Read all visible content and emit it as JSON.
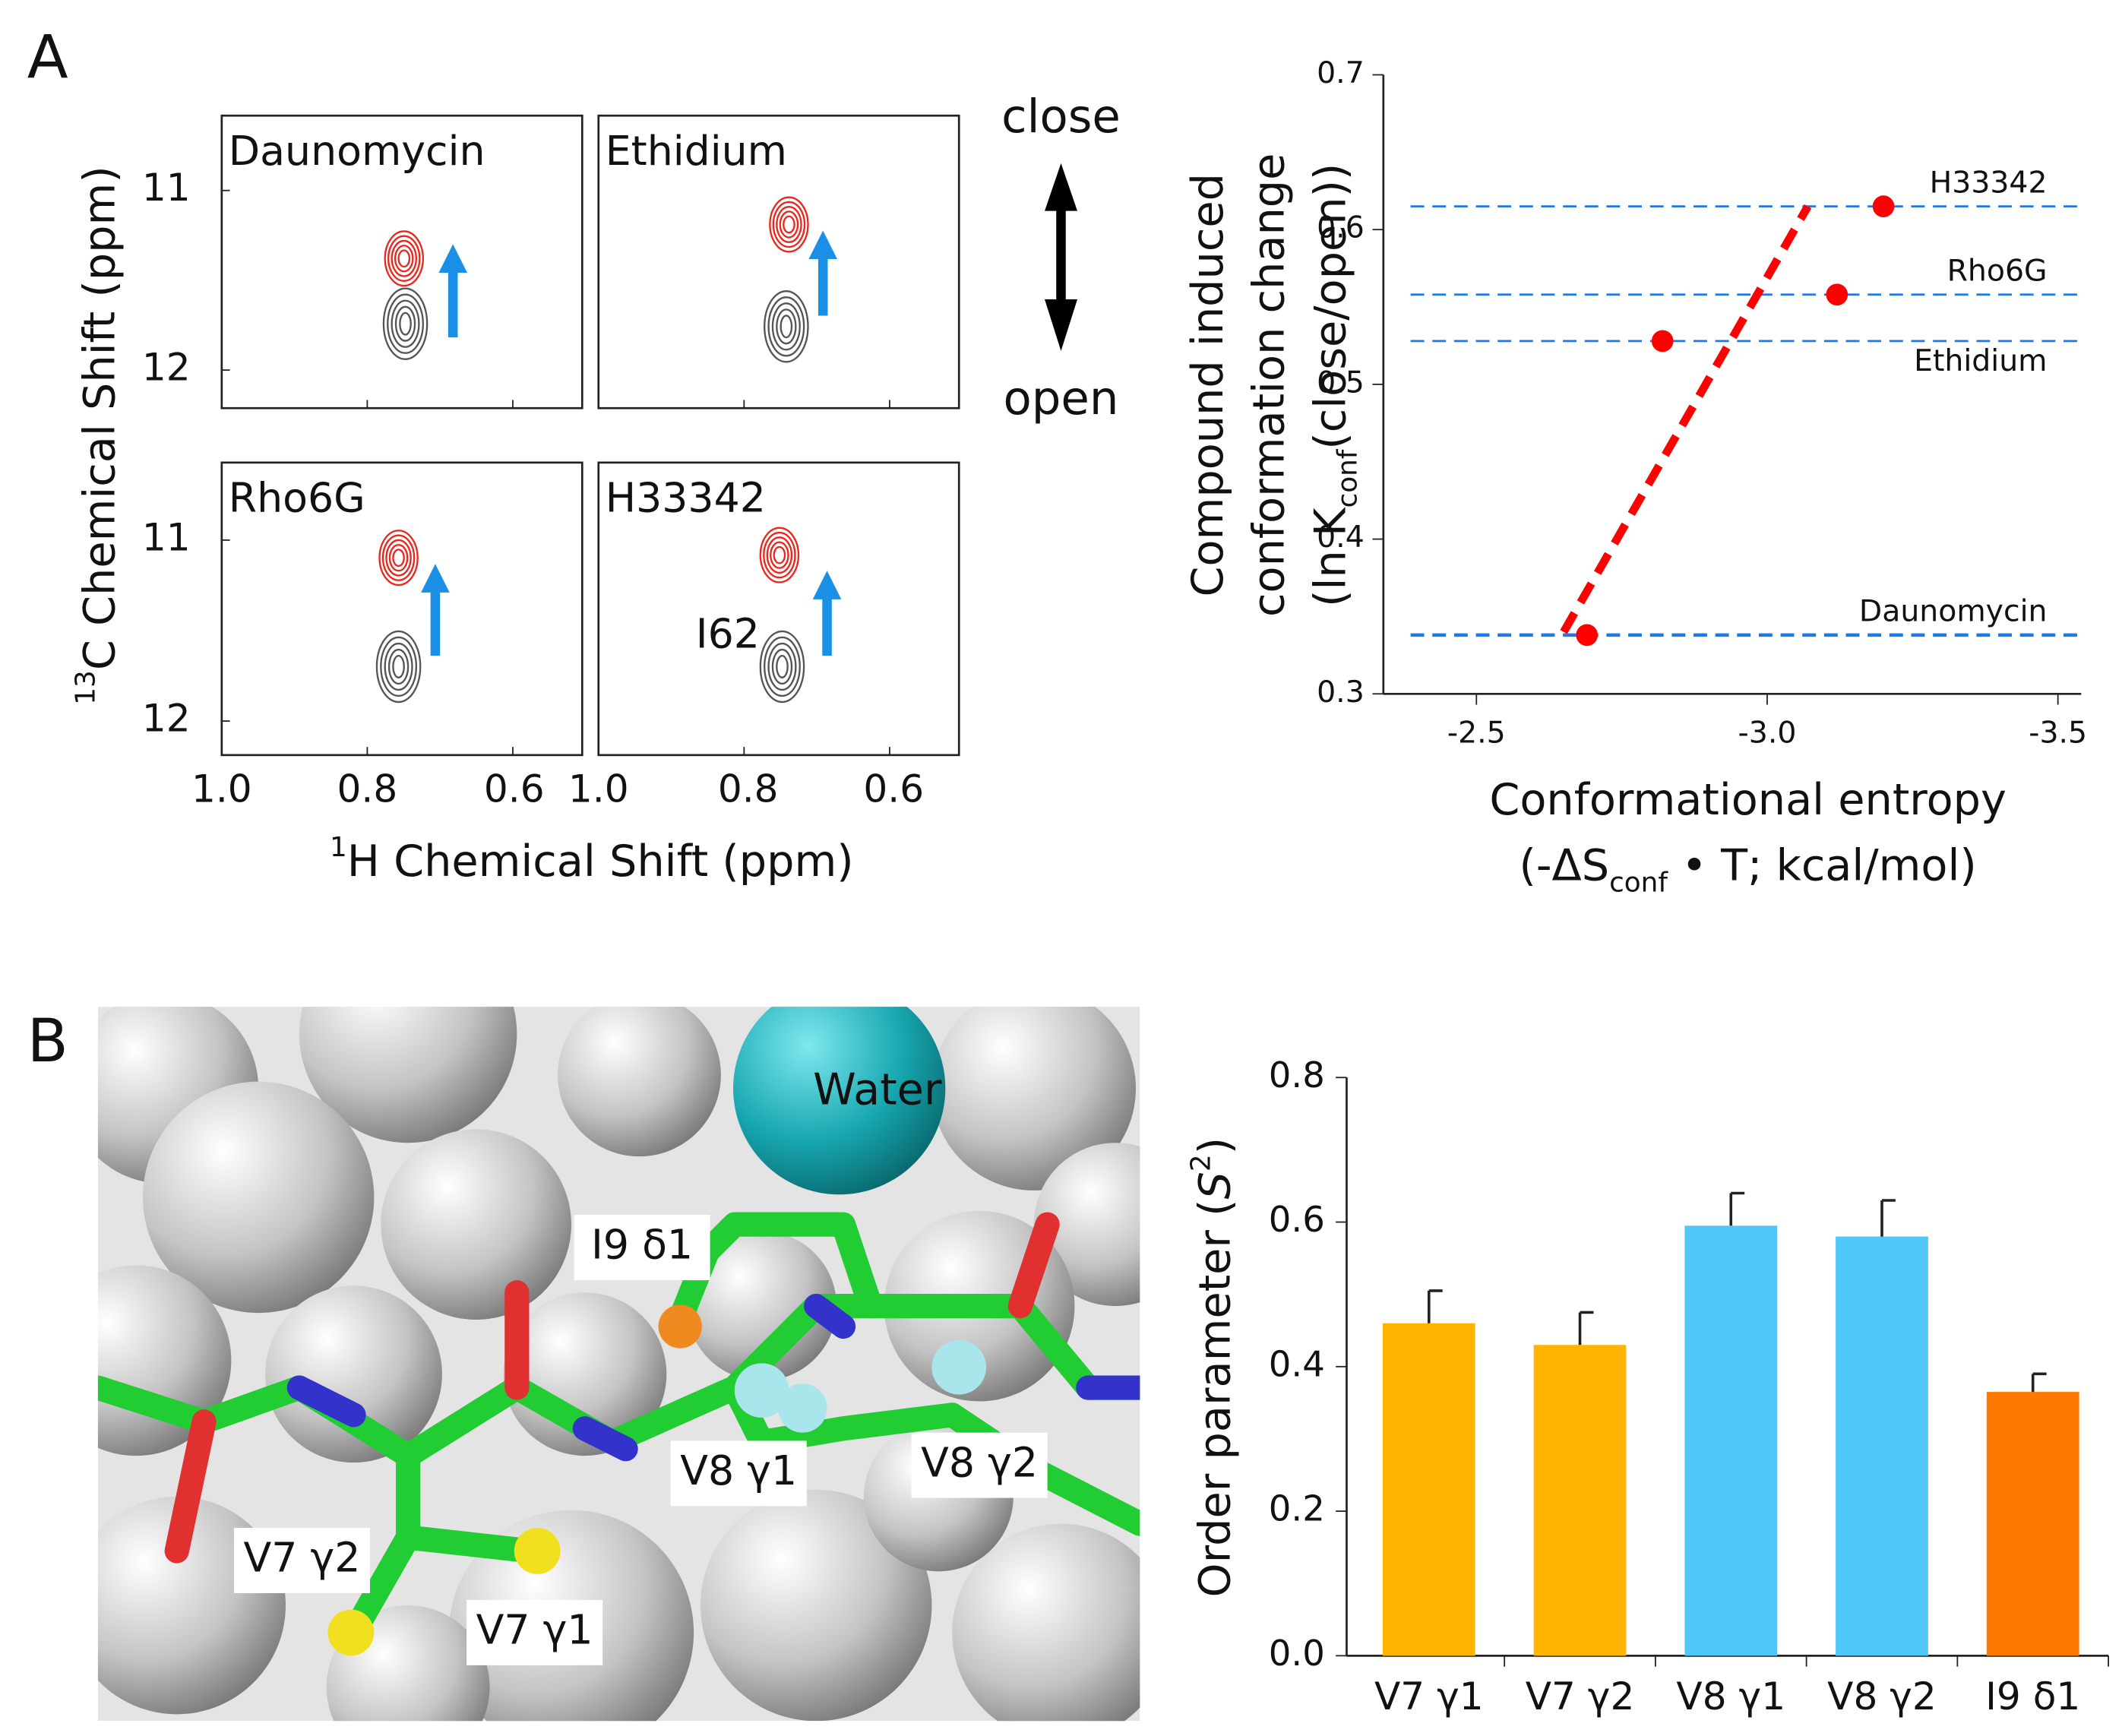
{
  "panel_labels": [
    "A",
    "B"
  ],
  "nmr": {
    "ylabel": [
      "13",
      "C Chemical Shift (ppm)"
    ],
    "xlabel": [
      "1",
      "H Chemical Shift (ppm)"
    ],
    "xticks": [
      "1.0",
      "0.8",
      "0.6"
    ],
    "yticks": [
      "11",
      "12"
    ],
    "spectra": [
      "Daunomycin",
      "Ethidium",
      "Rho6G",
      "H33342"
    ],
    "peak_label": "I62",
    "direction": [
      "close",
      "open"
    ]
  },
  "structure": {
    "labels": [
      "Water",
      "I9 δ1",
      "V8 γ1",
      "V8 γ2",
      "V7 γ2",
      "V7 γ1"
    ]
  },
  "chart_data": [
    {
      "type": "scatter",
      "ylabel": {
        "lines": [
          "Compound induced",
          "conformation change"
        ],
        "line3": [
          "(ln K",
          "conf",
          "(close/open))"
        ]
      },
      "xlabel": {
        "line1": "Conformational entropy",
        "line2": [
          "(-ΔS",
          "conf",
          " • T; kcal/mol)"
        ]
      },
      "categories": [
        "Daunomycin",
        "Ethidium",
        "Rho6G",
        "H33342"
      ],
      "x": [
        -2.69,
        -2.82,
        -3.12,
        -3.2
      ],
      "values": [
        0.338,
        0.528,
        0.558,
        0.615
      ],
      "color": "#ff0000",
      "reference_line_color": "#1e78e6",
      "fit_line": {
        "x": [
          -2.65,
          -3.07
        ],
        "y": [
          0.34,
          0.615
        ]
      },
      "xlim": [
        -2.34,
        -3.54
      ],
      "xticks": [
        -2.5,
        {
          "value": -3,
          "label": "-3.0"
        },
        -3.5
      ],
      "ylim": [
        0.3,
        0.7
      ],
      "yticks": [
        0.3,
        0.4,
        0.5,
        0.6,
        0.7
      ]
    },
    {
      "type": "bar",
      "ylabel": [
        "Order parameter (",
        "S",
        "2",
        ")"
      ],
      "categories": [
        "V7 γ1",
        "V7 γ2",
        "V8 γ1",
        "V8 γ2",
        "I9 δ1"
      ],
      "values": [
        0.46,
        0.43,
        0.595,
        0.58,
        0.365
      ],
      "errors": [
        0.045,
        0.045,
        0.045,
        0.05,
        0.025
      ],
      "colors": [
        "#ffb400",
        "#ffb400",
        "#4fc8f8",
        "#4fc8f8",
        "#ff7800"
      ],
      "ylim": [
        0,
        0.8
      ],
      "yticks": [
        {
          "value": 0,
          "label": "0.0"
        },
        0.2,
        0.4,
        0.6,
        0.8
      ]
    }
  ]
}
